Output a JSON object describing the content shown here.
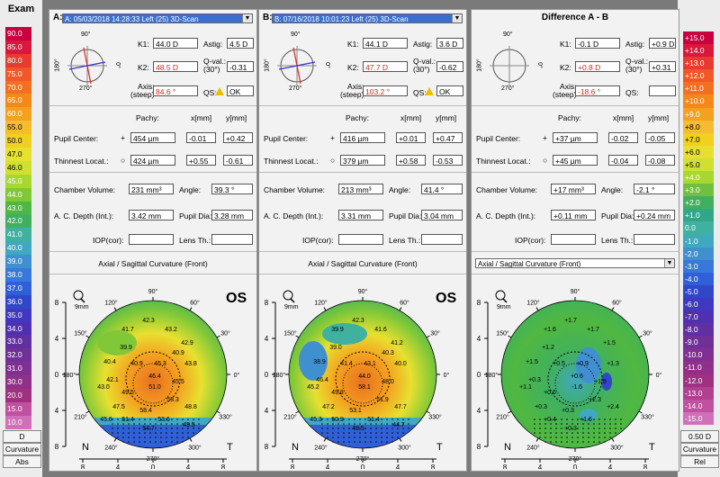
{
  "left_scale": {
    "title": "Exam",
    "values": [
      "90.0",
      "85.0",
      "80.0",
      "75.0",
      "70.0",
      "65.0",
      "60.0",
      "55.0",
      "50.0",
      "47.0",
      "46.0",
      "45.0",
      "44.0",
      "43.0",
      "42.0",
      "41.0",
      "40.0",
      "39.0",
      "38.0",
      "37.0",
      "36.0",
      "35.0",
      "34.0",
      "33.0",
      "32.0",
      "31.0",
      "30.0",
      "20.0",
      "15.0",
      "10.0"
    ],
    "colors": [
      "#c80040",
      "#d8183c",
      "#e83a30",
      "#f05828",
      "#f47020",
      "#f48818",
      "#f4a020",
      "#f4bc30",
      "#f0d020",
      "#e8e030",
      "#d0e030",
      "#a8d830",
      "#80c838",
      "#50b840",
      "#40b060",
      "#40b0a0",
      "#40a8c0",
      "#4090d0",
      "#3878d8",
      "#3060d8",
      "#3048c8",
      "#4038c0",
      "#5030b0",
      "#6030a0",
      "#703098",
      "#803090",
      "#903088",
      "#a03080",
      "#c050a0",
      "#d070b8"
    ],
    "unit": "D",
    "mode": "Curvature",
    "type": "Abs"
  },
  "right_scale": {
    "values": [
      "+15.0",
      "+14.0",
      "+13.0",
      "+12.0",
      "+11.0",
      "+10.0",
      "+9.0",
      "+8.0",
      "+7.0",
      "+6.0",
      "+5.0",
      "+4.0",
      "+3.0",
      "+2.0",
      "+1.0",
      "0.0",
      "-1.0",
      "-2.0",
      "-3.0",
      "-4.0",
      "-5.0",
      "-6.0",
      "-7.0",
      "-8.0",
      "-9.0",
      "-10.0",
      "-11.0",
      "-12.0",
      "-13.0",
      "-14.0",
      "-15.0"
    ],
    "colors": [
      "#c80040",
      "#d8183c",
      "#e83a30",
      "#f05828",
      "#f47020",
      "#f48818",
      "#f4a020",
      "#f4bc30",
      "#f0d020",
      "#e8e030",
      "#d0e030",
      "#a8d830",
      "#70c040",
      "#40b060",
      "#30a888",
      "#40b0a0",
      "#40a8c0",
      "#4090d0",
      "#3878d8",
      "#3060d8",
      "#3048c8",
      "#4038c0",
      "#5030b0",
      "#6030a0",
      "#703098",
      "#803090",
      "#903088",
      "#a03080",
      "#b04090",
      "#c050a0",
      "#d070b8"
    ],
    "step": "0.50 D",
    "mode": "Curvature",
    "type": "Rel"
  },
  "panels": [
    {
      "id": "A",
      "label": "A:",
      "exam": "A: 05/03/2018 14:28:33  Left    (25) 3D-Scan",
      "k1": "44.0 D",
      "k2": "48.5 D",
      "axis": "84.6 °",
      "astig": "4.5 D",
      "qval": "-0.31",
      "qs": "OK",
      "pupil_pachy": "454 µm",
      "pupil_x": "-0.01",
      "pupil_y": "+0.42",
      "thin_pachy": "424 µm",
      "thin_x": "+0.55",
      "thin_y": "-0.61",
      "chamber_vol": "231 mm³",
      "angle": "39.3 °",
      "acd": "3.42 mm",
      "pupil_dia": "3.28 mm",
      "iop": "",
      "lens_th": "",
      "map_title": "Axial / Sagittal Curvature (Front)",
      "eye": "OS",
      "map_values": [
        "42.3",
        "41.7",
        "43.2",
        "39.9",
        "42.9",
        "40.4",
        "40.9",
        "45.3",
        "43.8",
        "42.1",
        "46.4",
        "45.5",
        "43.0",
        "49.5",
        "51.0",
        "47.5",
        "58.4",
        "53.3",
        "48.8",
        "51.4",
        "53.6",
        "54.7",
        "49.5",
        "45.6",
        "40.9"
      ]
    },
    {
      "id": "B",
      "label": "B:",
      "exam": "B: 07/16/2018 10:01:23  Left    (25) 3D-Scan",
      "k1": "44.1 D",
      "k2": "47.7 D",
      "axis": "103.2 °",
      "astig": "3.6 D",
      "qval": "-0.62",
      "qs": "OK",
      "pupil_pachy": "416 µm",
      "pupil_x": "+0.01",
      "pupil_y": "+0.47",
      "thin_pachy": "379 µm",
      "thin_x": "+0.58",
      "thin_y": "-0.53",
      "chamber_vol": "213 mm³",
      "angle": "41.4 °",
      "acd": "3.31 mm",
      "pupil_dia": "3.04 mm",
      "iop": "",
      "lens_th": "",
      "map_title": "Axial / Sagittal Curvature (Front)",
      "eye": "OS",
      "map_values": [
        "42.3",
        "39.9",
        "41.6",
        "39.0",
        "41.2",
        "38.9",
        "41.4",
        "43.1",
        "40.0",
        "46.4",
        "44.0",
        "48.0",
        "45.2",
        "49.8",
        "58.1",
        "47.2",
        "53.1",
        "51.9",
        "47.7",
        "50.9",
        "51.4",
        "49.5",
        "44.7",
        "45.3",
        "40.3"
      ]
    }
  ],
  "diff": {
    "title": "Difference A - B",
    "k1": "-0.1 D",
    "k2": "+0.8 D",
    "axis": "-18.6 °",
    "astig": "+0.9 D",
    "qval": "+0.31",
    "qs": "",
    "pupil_pachy": "+37 µm",
    "pupil_x": "-0.02",
    "pupil_y": "-0.05",
    "thin_pachy": "+45 µm",
    "thin_x": "-0.04",
    "thin_y": "-0.08",
    "chamber_vol": "+17 mm³",
    "angle": "-2.1 °",
    "acd": "+0.11 mm",
    "pupil_dia": "+0.24 mm",
    "iop": "",
    "lens_th": "",
    "map_title": "Axial / Sagittal Curvature (Front)",
    "map_values": [
      "+1.7",
      "+1.6",
      "+1.7",
      "+1.2",
      "+1.5",
      "+1.5",
      "+0.5",
      "+0.9",
      "+1.3",
      "+0.3",
      "+0.6",
      "+1.5",
      "+1.1",
      "+0.6",
      "-1.6",
      "+0.3",
      "+0.3",
      "+2.3",
      "+2.4",
      "+0.4",
      "+1.6",
      "+0.3"
    ]
  },
  "labels": {
    "k1": "K1:",
    "k2": "K2:",
    "axis": "Axis:\n(steep)",
    "astig": "Astig:",
    "qval": "Q-val.:\n(30°)",
    "qs": "QS:",
    "pachy": "Pachy:",
    "xmm": "x[mm]",
    "ymm": "y[mm]",
    "pupil": "Pupil Center:",
    "thin": "Thinnest Locat.:",
    "chamber": "Chamber Volume:",
    "angle": "Angle:",
    "acd": "A. C. Depth (Int.):",
    "pupil_dia": "Pupil Dia:",
    "iop": "IOP(cor):",
    "lens": "Lens Th.:",
    "scale_mm": "9mm",
    "nasal": "N",
    "temporal": "T",
    "deg90": "90°",
    "deg270": "270°",
    "deg180": "180°",
    "deg0": "0°",
    "deg120": "120°",
    "deg60": "60°",
    "deg150": "150°",
    "deg30": "30°",
    "deg210": "210°",
    "deg330": "330°",
    "deg240": "240°",
    "deg300": "300°",
    "xaxis": [
      "8",
      "4",
      "0",
      "4",
      "8"
    ]
  }
}
